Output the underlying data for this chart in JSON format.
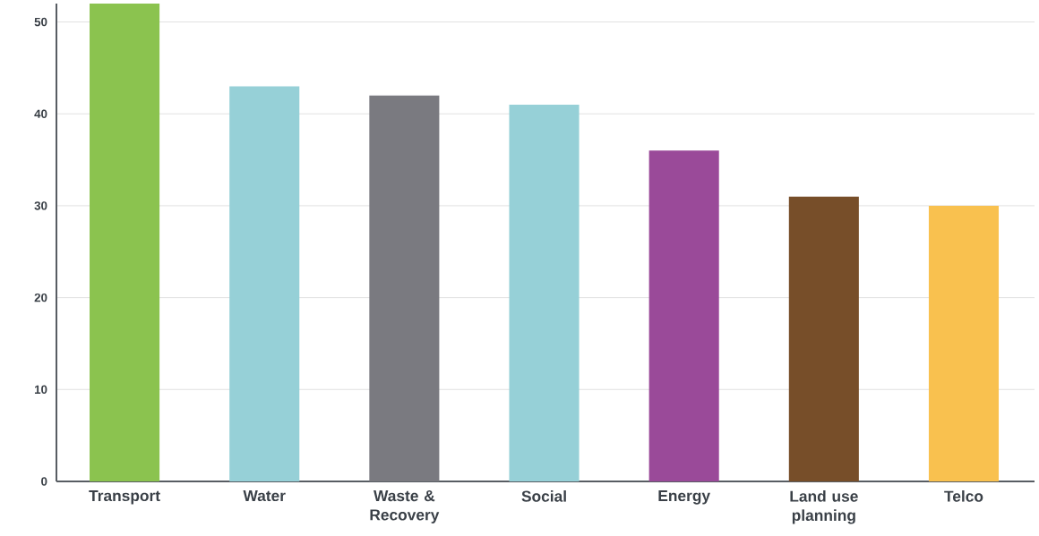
{
  "chart_data": {
    "type": "bar",
    "categories": [
      "Transport",
      "Water",
      "Waste & Recovery",
      "Social",
      "Energy",
      "Land use planning",
      "Telco"
    ],
    "values": [
      52,
      43,
      42,
      41,
      36,
      31,
      30
    ],
    "colors": [
      "#8bc34f",
      "#96d0d7",
      "#7a7a80",
      "#96d0d7",
      "#9a4a99",
      "#774e29",
      "#f9c14f"
    ],
    "ylim": [
      0,
      52
    ],
    "yticks": [
      0,
      10,
      20,
      30,
      40,
      50
    ],
    "grid": "y"
  }
}
